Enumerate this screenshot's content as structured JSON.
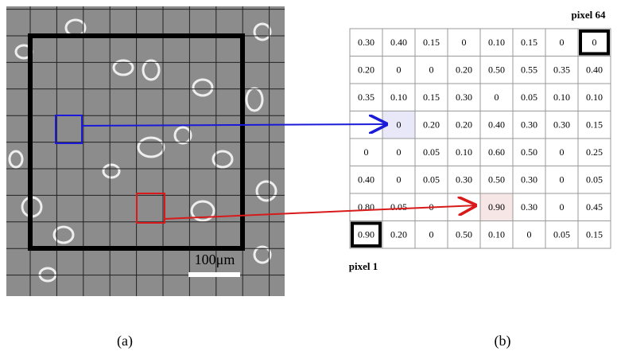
{
  "image_panel": {
    "scale_label": "100μm",
    "caption": "(a)"
  },
  "table_panel": {
    "caption": "(b)",
    "top_right_label": "pixel 64",
    "bottom_left_label": "pixel 1",
    "table": {
      "rows": [
        [
          "0.30",
          "0.40",
          "0.15",
          "0",
          "0.10",
          "0.15",
          "0",
          "0"
        ],
        [
          "0.20",
          "0",
          "0",
          "0.20",
          "0.50",
          "0.55",
          "0.35",
          "0.40"
        ],
        [
          "0.35",
          "0.10",
          "0.15",
          "0.30",
          "0",
          "0.05",
          "0.10",
          "0.10"
        ],
        [
          null,
          "0",
          "0.20",
          "0.20",
          "0.40",
          "0.30",
          "0.30",
          "0.15"
        ],
        [
          "0",
          "0",
          "0.05",
          "0.10",
          "0.60",
          "0.50",
          "0",
          "0.25"
        ],
        [
          "0.40",
          "0",
          "0.05",
          "0.30",
          "0.50",
          "0.30",
          "0",
          "0.05"
        ],
        [
          "0.80",
          "0.05",
          "0",
          null,
          "0.90",
          "0.30",
          "0",
          "0.45"
        ],
        [
          "0.90",
          "0.20",
          "0",
          "0.50",
          "0.10",
          "0",
          "0.05",
          "0.15"
        ]
      ]
    }
  }
}
